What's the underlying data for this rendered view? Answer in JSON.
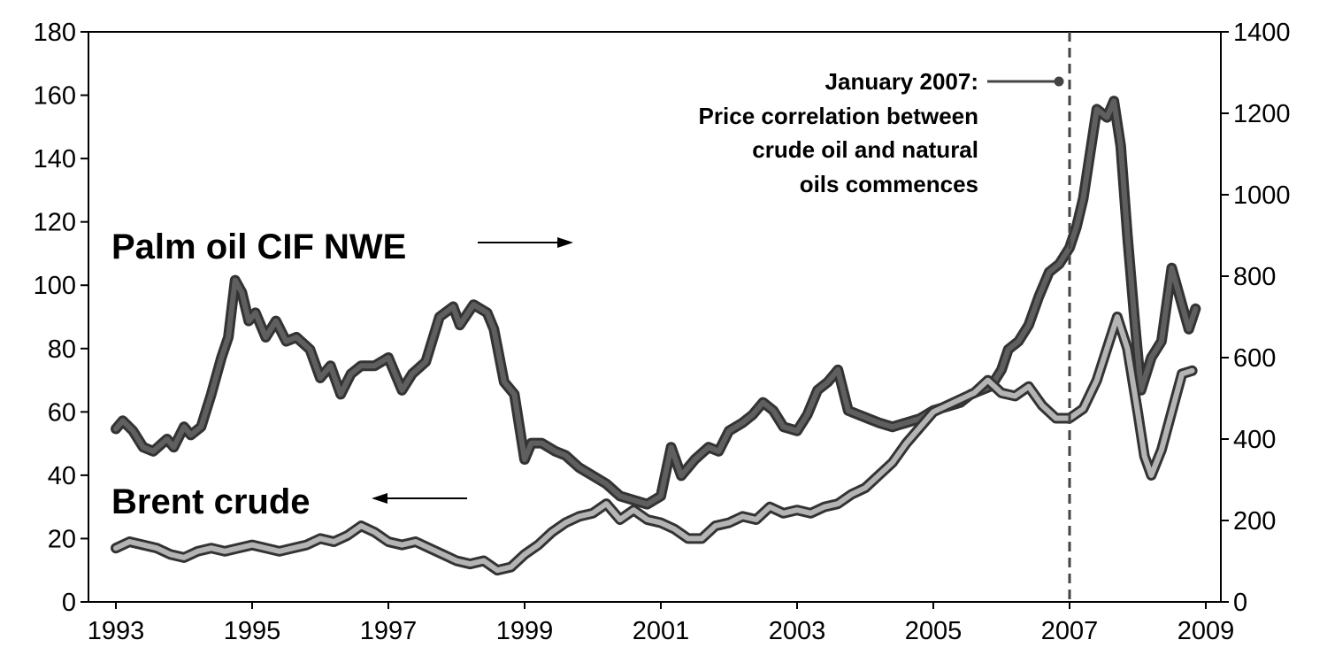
{
  "chart_data": {
    "type": "line",
    "title": "",
    "xlabel": "",
    "ylabel_left": "",
    "ylabel_right": "",
    "x_ticks": [
      "1993",
      "1995",
      "1997",
      "1999",
      "2001",
      "2003",
      "2005",
      "2007",
      "2009"
    ],
    "xlim": [
      1993,
      2009
    ],
    "y_left_ticks": [
      "0",
      "20",
      "40",
      "60",
      "80",
      "100",
      "120",
      "140",
      "160",
      "180"
    ],
    "y_left_lim": [
      0,
      180
    ],
    "y_right_ticks": [
      "0",
      "200",
      "400",
      "600",
      "800",
      "1000",
      "1200",
      "1400"
    ],
    "y_right_lim": [
      0,
      1400
    ],
    "grid": false,
    "series": [
      {
        "name": "Palm oil CIF NWE",
        "axis": "right",
        "color": "#5f5f5f",
        "x": [
          1993.0,
          1993.1,
          1993.25,
          1993.4,
          1993.55,
          1993.75,
          1993.85,
          1994.0,
          1994.1,
          1994.25,
          1994.4,
          1994.55,
          1994.65,
          1994.75,
          1994.85,
          1994.95,
          1995.05,
          1995.2,
          1995.35,
          1995.5,
          1995.65,
          1995.85,
          1996.0,
          1996.15,
          1996.3,
          1996.45,
          1996.6,
          1996.8,
          1997.0,
          1997.2,
          1997.35,
          1997.55,
          1997.75,
          1997.95,
          1998.05,
          1998.25,
          1998.45,
          1998.55,
          1998.7,
          1998.85,
          1999.0,
          1999.1,
          1999.25,
          1999.45,
          1999.6,
          1999.8,
          2000.0,
          2000.2,
          2000.4,
          2000.6,
          2000.8,
          2001.0,
          2001.15,
          2001.3,
          2001.5,
          2001.7,
          2001.85,
          2002.0,
          2002.2,
          2002.35,
          2002.5,
          2002.65,
          2002.8,
          2003.0,
          2003.15,
          2003.3,
          2003.45,
          2003.6,
          2003.75,
          2003.9,
          2004.05,
          2004.2,
          2004.4,
          2004.6,
          2004.8,
          2005.0,
          2005.2,
          2005.4,
          2005.55,
          2005.7,
          2005.85,
          2006.0,
          2006.1,
          2006.25,
          2006.4,
          2006.55,
          2006.7,
          2006.85,
          2007.0,
          2007.1,
          2007.2,
          2007.3,
          2007.4,
          2007.55,
          2007.65,
          2007.75,
          2007.85,
          2007.95,
          2008.05,
          2008.2,
          2008.35,
          2008.5,
          2008.6,
          2008.75,
          2008.85
        ],
        "y": [
          425,
          445,
          420,
          380,
          370,
          400,
          380,
          430,
          410,
          430,
          510,
          600,
          650,
          790,
          760,
          690,
          710,
          650,
          690,
          640,
          650,
          620,
          550,
          580,
          510,
          560,
          580,
          580,
          600,
          520,
          560,
          590,
          700,
          725,
          680,
          730,
          710,
          670,
          540,
          510,
          350,
          390,
          390,
          370,
          360,
          330,
          310,
          290,
          260,
          250,
          240,
          260,
          380,
          310,
          350,
          380,
          370,
          420,
          440,
          460,
          490,
          470,
          430,
          420,
          460,
          520,
          540,
          570,
          470,
          460,
          450,
          440,
          430,
          440,
          450,
          470,
          480,
          490,
          510,
          520,
          530,
          570,
          620,
          640,
          680,
          750,
          810,
          830,
          870,
          920,
          990,
          1100,
          1210,
          1190,
          1230,
          1120,
          900,
          700,
          520,
          600,
          640,
          820,
          760,
          670,
          720
        ]
      },
      {
        "name": "Brent crude",
        "axis": "left",
        "color": "#b4b4b4",
        "x": [
          1993.0,
          1993.2,
          1993.4,
          1993.6,
          1993.8,
          1994.0,
          1994.2,
          1994.4,
          1994.6,
          1994.8,
          1995.0,
          1995.2,
          1995.4,
          1995.6,
          1995.8,
          1996.0,
          1996.2,
          1996.4,
          1996.6,
          1996.8,
          1997.0,
          1997.2,
          1997.4,
          1997.6,
          1997.8,
          1998.0,
          1998.2,
          1998.4,
          1998.6,
          1998.8,
          1999.0,
          1999.2,
          1999.4,
          1999.6,
          1999.8,
          2000.0,
          2000.2,
          2000.4,
          2000.6,
          2000.8,
          2001.0,
          2001.2,
          2001.4,
          2001.6,
          2001.8,
          2002.0,
          2002.2,
          2002.4,
          2002.6,
          2002.8,
          2003.0,
          2003.2,
          2003.4,
          2003.6,
          2003.8,
          2004.0,
          2004.2,
          2004.4,
          2004.6,
          2004.8,
          2005.0,
          2005.2,
          2005.4,
          2005.6,
          2005.8,
          2006.0,
          2006.2,
          2006.4,
          2006.6,
          2006.8,
          2007.0,
          2007.2,
          2007.4,
          2007.55,
          2007.7,
          2007.85,
          2008.0,
          2008.1,
          2008.2,
          2008.35,
          2008.5,
          2008.65,
          2008.8
        ],
        "y": [
          17,
          19,
          18,
          17,
          15,
          14,
          16,
          17,
          16,
          17,
          18,
          17,
          16,
          17,
          18,
          20,
          19,
          21,
          24,
          22,
          19,
          18,
          19,
          17,
          15,
          13,
          12,
          13,
          10,
          11,
          15,
          18,
          22,
          25,
          27,
          28,
          31,
          26,
          29,
          26,
          25,
          23,
          20,
          20,
          24,
          25,
          27,
          26,
          30,
          28,
          29,
          28,
          30,
          31,
          34,
          36,
          40,
          44,
          50,
          55,
          60,
          62,
          64,
          66,
          70,
          66,
          65,
          68,
          62,
          58,
          58,
          61,
          70,
          80,
          90,
          80,
          60,
          46,
          40,
          48,
          60,
          72,
          73
        ]
      }
    ],
    "annotations": {
      "palm_label": "Palm oil CIF NWE",
      "brent_label": "Brent crude",
      "vline_x": 2007,
      "note_lines": [
        "January 2007:",
        "Price correlation between",
        "crude oil and natural",
        "oils commences"
      ]
    }
  }
}
